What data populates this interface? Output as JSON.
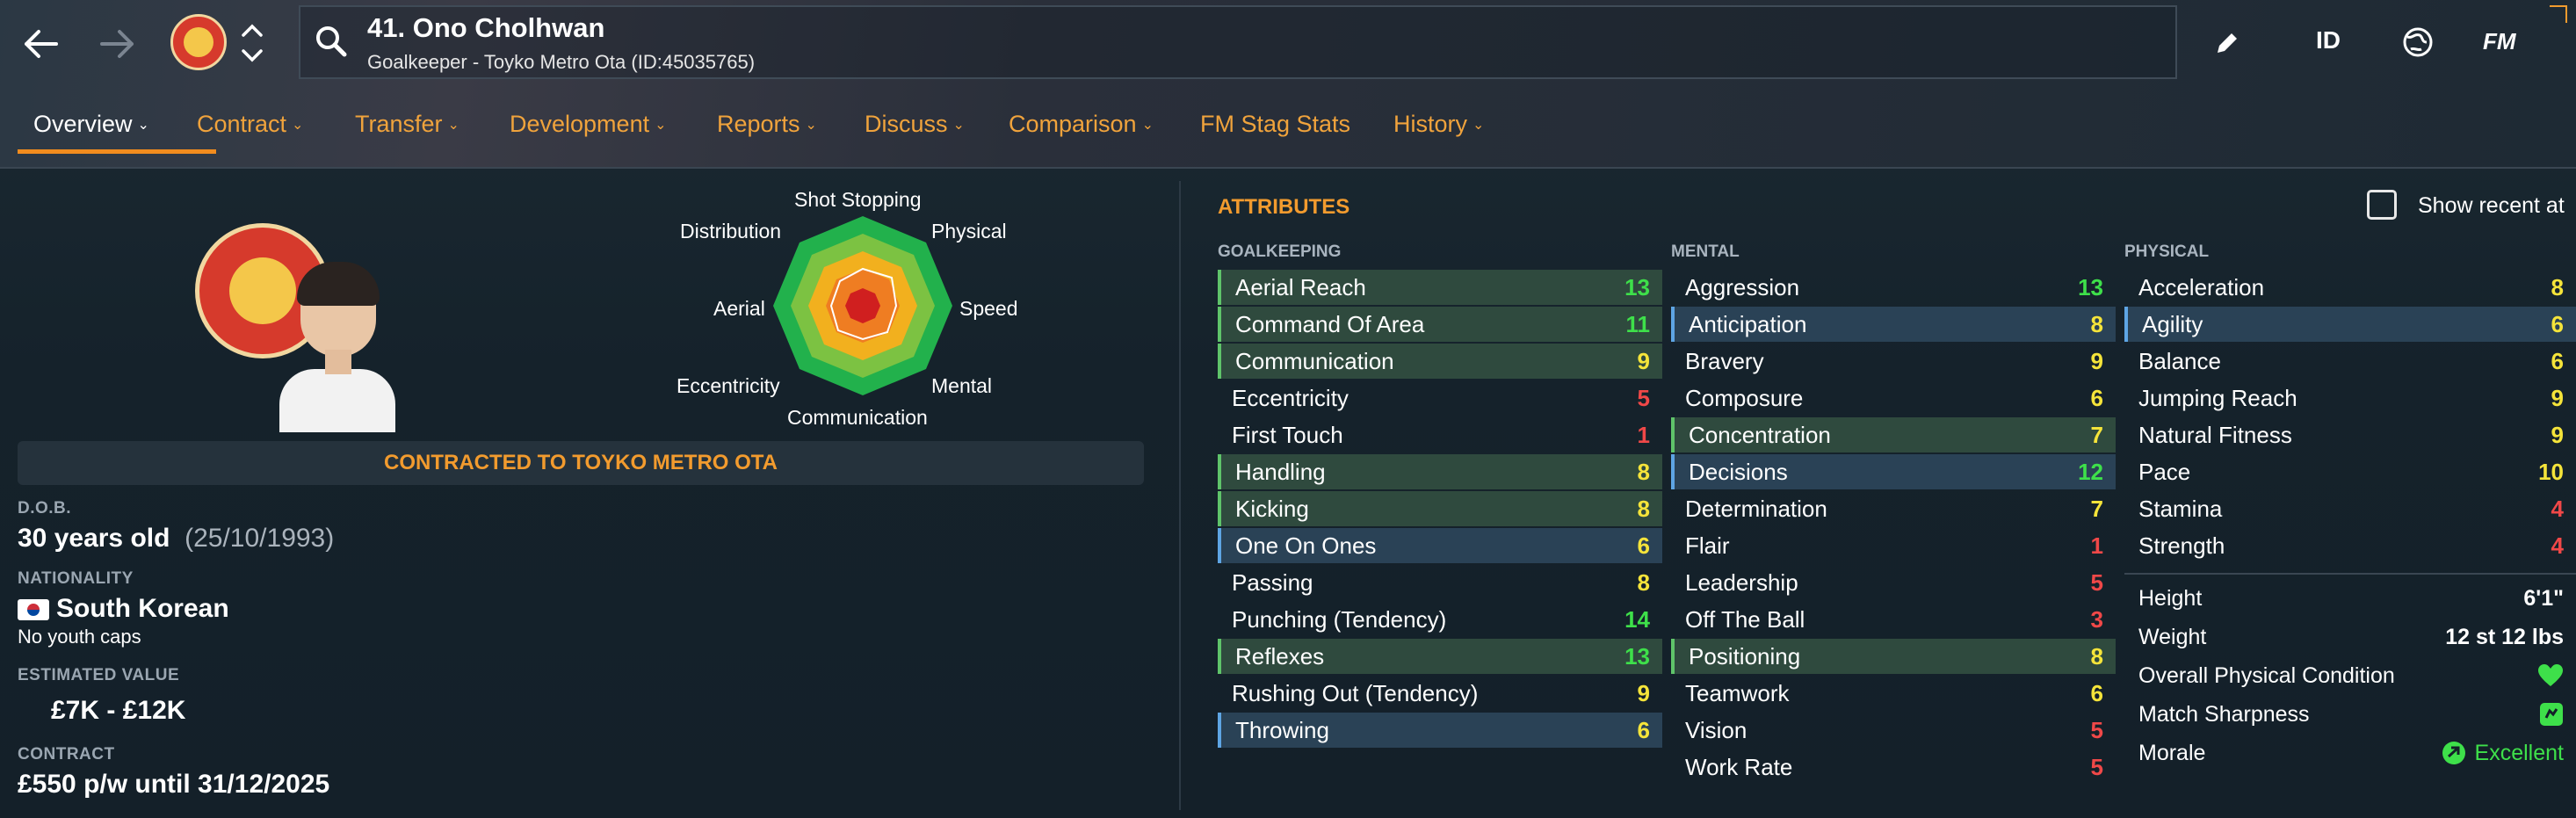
{
  "header": {
    "title": "41. Ono Cholhwan",
    "subtitle": "Goalkeeper - Toyko Metro Ota (ID:45035765)",
    "actions": {
      "id_label": "ID",
      "fm_label": "FM"
    }
  },
  "tabs": [
    {
      "label": "Overview"
    },
    {
      "label": "Contract"
    },
    {
      "label": "Transfer"
    },
    {
      "label": "Development"
    },
    {
      "label": "Reports"
    },
    {
      "label": "Discuss"
    },
    {
      "label": "Comparison"
    },
    {
      "label": "FM Stag Stats"
    },
    {
      "label": "History"
    }
  ],
  "radar": {
    "labels": {
      "top": "Shot Stopping",
      "top_right": "Physical",
      "right": "Speed",
      "bottom_right": "Mental",
      "bottom": "Communication",
      "bottom_left": "Eccentricity",
      "left": "Aerial",
      "top_left": "Distribution"
    }
  },
  "profile": {
    "contracted": "CONTRACTED TO TOYKO METRO OTA",
    "dob_label": "D.O.B.",
    "age": "30 years old",
    "dob": "(25/10/1993)",
    "nationality_label": "NATIONALITY",
    "nationality": "South Korean",
    "youth_caps": "No youth caps",
    "value_label": "ESTIMATED VALUE",
    "value": "£7K - £12K",
    "contract_label": "CONTRACT",
    "contract": "£550 p/w until 31/12/2025"
  },
  "attributes": {
    "title": "ATTRIBUTES",
    "show_recent": "Show recent at",
    "goalkeeping": {
      "heading": "GOALKEEPING",
      "items": [
        {
          "name": "Aerial Reach",
          "value": "13"
        },
        {
          "name": "Command Of Area",
          "value": "11"
        },
        {
          "name": "Communication",
          "value": "9"
        },
        {
          "name": "Eccentricity",
          "value": "5"
        },
        {
          "name": "First Touch",
          "value": "1"
        },
        {
          "name": "Handling",
          "value": "8"
        },
        {
          "name": "Kicking",
          "value": "8"
        },
        {
          "name": "One On Ones",
          "value": "6"
        },
        {
          "name": "Passing",
          "value": "8"
        },
        {
          "name": "Punching (Tendency)",
          "value": "14"
        },
        {
          "name": "Reflexes",
          "value": "13"
        },
        {
          "name": "Rushing Out (Tendency)",
          "value": "9"
        },
        {
          "name": "Throwing",
          "value": "6"
        }
      ]
    },
    "mental": {
      "heading": "MENTAL",
      "items": [
        {
          "name": "Aggression",
          "value": "13"
        },
        {
          "name": "Anticipation",
          "value": "8"
        },
        {
          "name": "Bravery",
          "value": "9"
        },
        {
          "name": "Composure",
          "value": "6"
        },
        {
          "name": "Concentration",
          "value": "7"
        },
        {
          "name": "Decisions",
          "value": "12"
        },
        {
          "name": "Determination",
          "value": "7"
        },
        {
          "name": "Flair",
          "value": "1"
        },
        {
          "name": "Leadership",
          "value": "5"
        },
        {
          "name": "Off The Ball",
          "value": "3"
        },
        {
          "name": "Positioning",
          "value": "8"
        },
        {
          "name": "Teamwork",
          "value": "6"
        },
        {
          "name": "Vision",
          "value": "5"
        },
        {
          "name": "Work Rate",
          "value": "5"
        }
      ]
    },
    "physical": {
      "heading": "PHYSICAL",
      "items": [
        {
          "name": "Acceleration",
          "value": "8"
        },
        {
          "name": "Agility",
          "value": "6"
        },
        {
          "name": "Balance",
          "value": "6"
        },
        {
          "name": "Jumping Reach",
          "value": "9"
        },
        {
          "name": "Natural Fitness",
          "value": "9"
        },
        {
          "name": "Pace",
          "value": "10"
        },
        {
          "name": "Stamina",
          "value": "4"
        },
        {
          "name": "Strength",
          "value": "4"
        }
      ]
    },
    "physical_info": {
      "height_label": "Height",
      "height": "6'1\"",
      "weight_label": "Weight",
      "weight": "12 st 12 lbs",
      "condition_label": "Overall Physical Condition",
      "sharpness_label": "Match Sharpness",
      "morale_label": "Morale",
      "morale": "Excellent"
    }
  },
  "colors": {
    "accent": "#f29b2e",
    "green": "#3ee04a",
    "yellow": "#f5e43a",
    "red": "#f04848"
  }
}
